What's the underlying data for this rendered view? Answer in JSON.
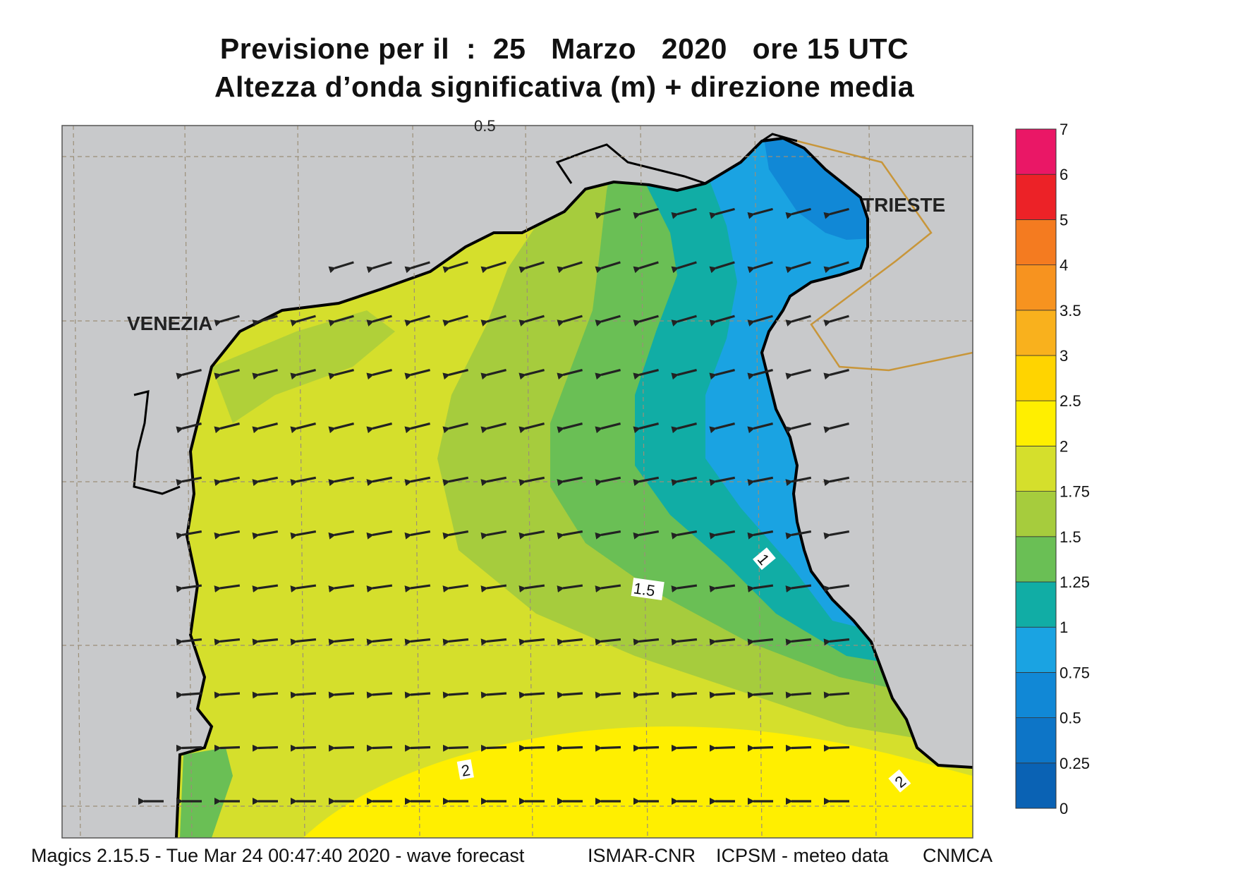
{
  "title": {
    "line1": "Previsione per il  :  25   Marzo   2020   ore 15 UTC",
    "line2": "Altezza d’onda significativa (m) + direzione media"
  },
  "map": {
    "cities": [
      {
        "name": "VENEZIA"
      },
      {
        "name": "TRIESTE"
      }
    ],
    "contour_labels": [
      "0.5",
      "1",
      "1.5",
      "2",
      "2"
    ],
    "colors": {
      "land": "#c8c9cb",
      "coast": "#000000",
      "border": "#c8963a",
      "arrow": "#222222"
    },
    "wave_direction": "towards west / west-southwest",
    "arrow_rows": [
      {
        "count": 7,
        "angle": -165
      },
      {
        "count": 14,
        "angle": -163
      },
      {
        "count": 17,
        "angle": -164
      },
      {
        "count": 18,
        "angle": -166
      },
      {
        "count": 18,
        "angle": -166
      },
      {
        "count": 18,
        "angle": -169
      },
      {
        "count": 18,
        "angle": -170
      },
      {
        "count": 18,
        "angle": -172
      },
      {
        "count": 18,
        "angle": -174
      },
      {
        "count": 18,
        "angle": -176
      },
      {
        "count": 18,
        "angle": -178
      },
      {
        "count": 19,
        "angle": -180
      }
    ]
  },
  "legend": {
    "unit": "m",
    "levels": [
      "0",
      "0.25",
      "0.5",
      "0.75",
      "1",
      "1.25",
      "1.5",
      "1.75",
      "2",
      "2.5",
      "3",
      "3.5",
      "4",
      "5",
      "6",
      "7"
    ],
    "colors": [
      "#0a62b4",
      "#0d75c7",
      "#1188d6",
      "#1aa3e2",
      "#11ada5",
      "#6abf55",
      "#a6cc3d",
      "#d5df2c",
      "#ffef00",
      "#ffd400",
      "#f9b11d",
      "#f7931f",
      "#f47b20",
      "#ec2227",
      "#ea1766"
    ]
  },
  "footer": {
    "software": "Magics 2.15.5 - Tue Mar 24 00:47:40 2020 - wave forecast",
    "institute_1": "ISMAR-CNR",
    "institute_2": "ICPSM - meteo data",
    "institute_3": "CNMCA"
  }
}
